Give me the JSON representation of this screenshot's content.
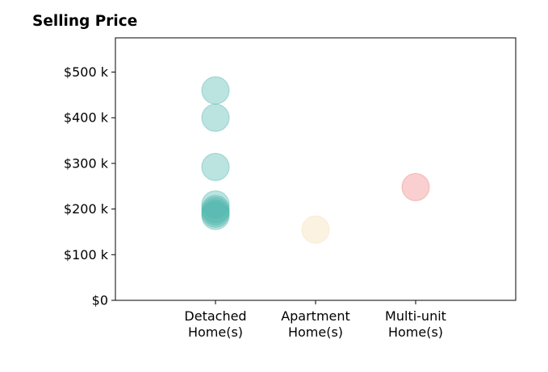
{
  "chart_data": {
    "type": "scatter",
    "title": "Selling Price",
    "xlabel": "",
    "ylabel": "",
    "categories": [
      "Detached\nHome(s)",
      "Apartment\nHome(s)",
      "Multi-unit\nHome(s)"
    ],
    "ylim": [
      0,
      575000
    ],
    "yticks": [
      0,
      100000,
      200000,
      300000,
      400000,
      500000
    ],
    "ytick_labels": [
      "$0",
      "$100 k",
      "$200 k",
      "$300 k",
      "$400 k",
      "$500 k"
    ],
    "grid": false,
    "series": [
      {
        "category": "Detached\nHome(s)",
        "color": "#4db6ac",
        "values": [
          460000,
          400000,
          292000,
          210000,
          200000,
          195000,
          190000,
          185000
        ]
      },
      {
        "category": "Apartment\nHome(s)",
        "color": "#f5deb3",
        "values": [
          155000
        ]
      },
      {
        "category": "Multi-unit\nHome(s)",
        "color": "#f08080",
        "values": [
          248000
        ]
      }
    ]
  }
}
